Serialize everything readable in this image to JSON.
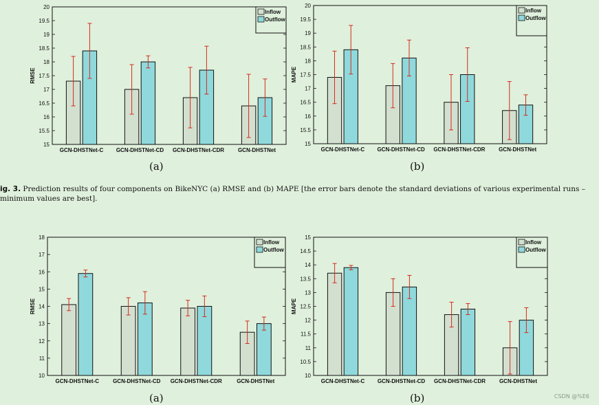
{
  "chart_data": [
    {
      "type": "bar",
      "ylabel": "RMSE",
      "subtitle": "(a)",
      "ylim": [
        15,
        20
      ],
      "yticks": [
        15,
        15.5,
        16,
        16.5,
        17,
        17.5,
        18,
        18.5,
        19,
        19.5,
        20
      ],
      "categories": [
        "GCN-DHSTNet-C",
        "GCN-DHSTNet-CD",
        "GCN-DHSTNet-CDR",
        "GCN-DHSTNet"
      ],
      "series": [
        {
          "name": "Inflow",
          "color": "#d3e0d0",
          "values": [
            17.3,
            17.0,
            16.7,
            16.4
          ],
          "errors": [
            0.9,
            0.9,
            1.1,
            1.15
          ]
        },
        {
          "name": "Outflow",
          "color": "#8fd9dc",
          "values": [
            18.4,
            18.0,
            17.7,
            16.7
          ],
          "errors": [
            1.0,
            0.22,
            0.87,
            0.68
          ]
        }
      ]
    },
    {
      "type": "bar",
      "ylabel": "MAPE",
      "subtitle": "(b)",
      "ylim": [
        15,
        20
      ],
      "yticks": [
        15,
        15.5,
        16,
        16.5,
        17,
        17.5,
        18,
        18.5,
        19,
        19.5,
        20
      ],
      "categories": [
        "GCN-DHSTNet-C",
        "GCN-DHSTNet-CD",
        "GCN-DHSTNet-CDR",
        "GCN-DHSTNet"
      ],
      "series": [
        {
          "name": "Inflow",
          "color": "#d3e0d0",
          "values": [
            17.4,
            17.1,
            16.5,
            16.2
          ],
          "errors": [
            0.95,
            0.8,
            1.0,
            1.05
          ]
        },
        {
          "name": "Outflow",
          "color": "#8fd9dc",
          "values": [
            18.4,
            18.1,
            17.5,
            16.4
          ],
          "errors": [
            0.88,
            0.65,
            0.97,
            0.37
          ]
        }
      ]
    },
    {
      "type": "bar",
      "ylabel": "RMSE",
      "subtitle": "(a)",
      "ylim": [
        10,
        18
      ],
      "yticks": [
        10,
        11,
        12,
        13,
        14,
        15,
        16,
        17,
        18
      ],
      "categories": [
        "GCN-DHSTNet-C",
        "GCN-DHSTNet-CD",
        "GCN-DHSTNet-CDR",
        "GCN-DHSTNet"
      ],
      "series": [
        {
          "name": "Inflow",
          "color": "#d3e0d0",
          "values": [
            14.1,
            14.0,
            13.9,
            12.5
          ],
          "errors": [
            0.35,
            0.5,
            0.45,
            0.65
          ]
        },
        {
          "name": "Outflow",
          "color": "#8fd9dc",
          "values": [
            15.9,
            14.2,
            14.0,
            13.0
          ],
          "errors": [
            0.2,
            0.65,
            0.6,
            0.38
          ]
        }
      ]
    },
    {
      "type": "bar",
      "ylabel": "MAPE",
      "subtitle": "(b)",
      "ylim": [
        10,
        15
      ],
      "yticks": [
        10,
        10.5,
        11,
        11.5,
        12,
        12.5,
        13,
        13.5,
        14,
        14.5,
        15
      ],
      "categories": [
        "GCN-DHSTNet-C",
        "GCN-DHSTNet-CD",
        "GCN-DHSTNet-CDR",
        "GCN-DHSTNet"
      ],
      "series": [
        {
          "name": "Inflow",
          "color": "#d3e0d0",
          "values": [
            13.7,
            13.0,
            12.2,
            11.0
          ],
          "errors": [
            0.35,
            0.5,
            0.45,
            0.95
          ]
        },
        {
          "name": "Outflow",
          "color": "#8fd9dc",
          "values": [
            13.9,
            13.2,
            12.4,
            12.0
          ],
          "errors": [
            0.08,
            0.42,
            0.2,
            0.45
          ]
        }
      ]
    }
  ],
  "caption": {
    "label": "ig. 3.",
    "line1": " Prediction results of four components on BikeNYC (a) RMSE and (b) MAPE [the error bars denote the standard deviations of various experimental runs –",
    "line2": "minimum values are best]."
  },
  "watermark": "CSDN @%E6"
}
